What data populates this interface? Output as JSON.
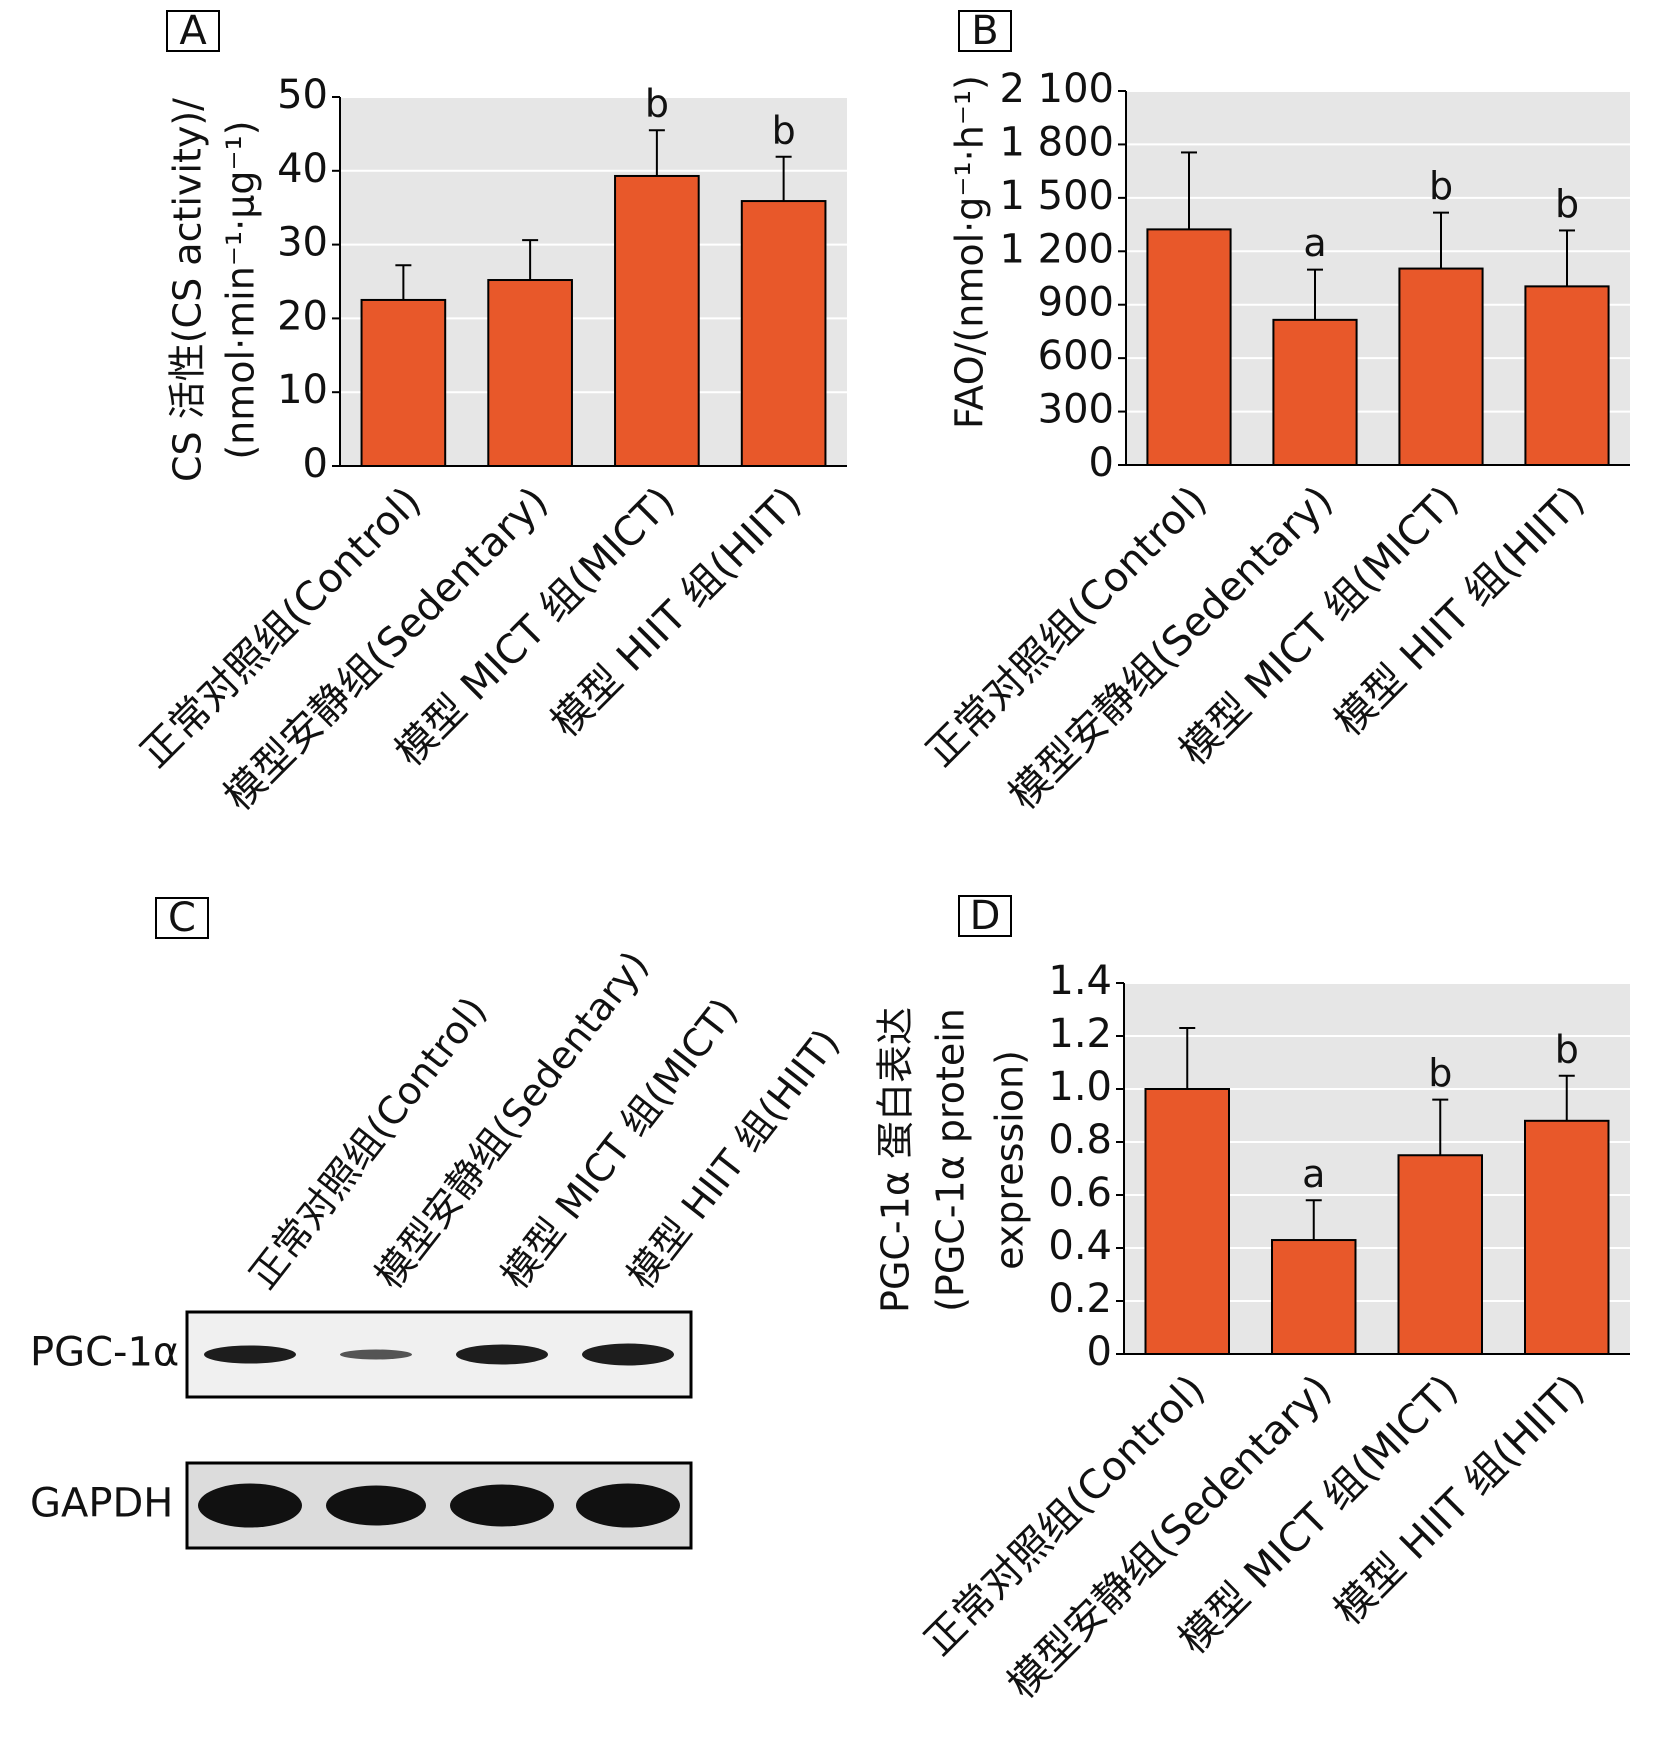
{
  "chart_data": [
    {
      "type": "bar",
      "panel": "A",
      "y_label": [
        "CS 活性(CS activity)/",
        "(nmol·min⁻¹·μg⁻¹)"
      ],
      "categories": [
        "正常对照组(Control)",
        "模型安静组(Sedentary)",
        "模型 MICT 组(MICT)",
        "模型 HIIT 组(HIIT)"
      ],
      "values": [
        22.5,
        25.2,
        39.3,
        35.9
      ],
      "errors": [
        4.7,
        5.4,
        6.2,
        6.0
      ],
      "annotations": [
        null,
        null,
        "b",
        "b"
      ],
      "color": "#e8582a",
      "ylim": [
        0,
        50
      ],
      "yticks": [
        0,
        10,
        20,
        30,
        40,
        50
      ],
      "grid": true
    },
    {
      "type": "bar",
      "panel": "B",
      "y_label": [
        "FAO/(nmol·g⁻¹·h⁻¹)"
      ],
      "categories": [
        "正常对照组(Control)",
        "模型安静组(Sedentary)",
        "模型 MICT 组(MICT)",
        "模型 HIIT 组(HIIT)"
      ],
      "values": [
        1323,
        815,
        1103,
        1003
      ],
      "errors": [
        432,
        282,
        314,
        314
      ],
      "annotations": [
        null,
        "a",
        "b",
        "b"
      ],
      "color": "#e8582a",
      "ylim": [
        0,
        2100
      ],
      "yticks": [
        0,
        300,
        600,
        900,
        {
          "value": 1200,
          "label": "1 200"
        },
        {
          "value": 1500,
          "label": "1 500"
        },
        {
          "value": 1800,
          "label": "1 800"
        },
        {
          "value": 2100,
          "label": "2 100"
        }
      ],
      "grid": true
    },
    {
      "type": "blot",
      "panel": "C",
      "categories": [
        "正常对照组(Control)",
        "模型安静组(Sedentary)",
        "模型 MICT 组(MICT)",
        "模型 HIIT 组(HIIT)"
      ],
      "rows": [
        "PGC-1α",
        "GAPDH"
      ]
    },
    {
      "type": "bar",
      "panel": "D",
      "y_label": [
        "PGC-1α 蛋白表达",
        "(PGC-1α protein",
        "expression)"
      ],
      "categories": [
        "正常对照组(Control)",
        "模型安静组(Sedentary)",
        "模型 MICT 组(MICT)",
        "模型 HIIT 组(HIIT)"
      ],
      "values": [
        1.0,
        0.43,
        0.75,
        0.88
      ],
      "errors": [
        0.23,
        0.15,
        0.21,
        0.17
      ],
      "annotations": [
        null,
        "a",
        "b",
        "b"
      ],
      "color": "#e8582a",
      "ylim": [
        0,
        1.4
      ],
      "yticks": [
        0,
        0.2,
        0.4,
        0.6,
        0.8,
        {
          "value": 1.0,
          "label": "1.0"
        },
        1.2,
        1.4
      ],
      "grid": true
    }
  ]
}
